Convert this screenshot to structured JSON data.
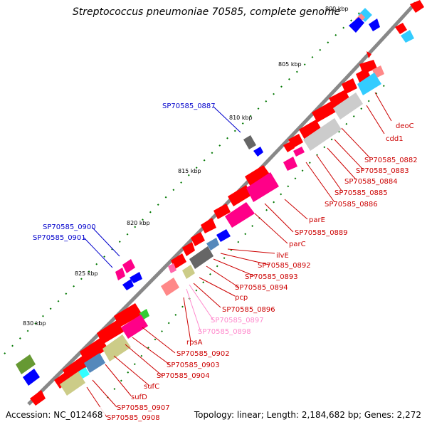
{
  "title": "Streptococcus pneumoniae 70585, complete genome",
  "footer": {
    "accession": "Accession: NC_012468",
    "summary": "Topology: linear; Length: 2,184,682 bp; Genes: 2,272"
  },
  "colors": {
    "cds_red": "#ff0000",
    "label_red": "#cc0000",
    "label_blue": "#0000cc",
    "label_pink": "#ff88cc",
    "backbone": "#888888",
    "tick_green": "#007700"
  },
  "scale_labels": [
    "800 kbp",
    "805 kbp",
    "810 kbp",
    "815 kbp",
    "820 kbp",
    "825 kbp",
    "830 kbp"
  ],
  "gene_labels": {
    "SP70585_0887": "SP70585_0887",
    "SP70585_0900": "SP70585_0900",
    "SP70585_0901": "SP70585_0901",
    "deoC": "deoC",
    "cdd1": "cdd1",
    "SP70585_0882": "SP70585_0882",
    "SP70585_0883": "SP70585_0883",
    "SP70585_0884": "SP70585_0884",
    "SP70585_0885": "SP70585_0885",
    "SP70585_0886": "SP70585_0886",
    "parE": "parE",
    "SP70585_0889": "SP70585_0889",
    "parC": "parC",
    "ilvE": "ilvE",
    "SP70585_0892": "SP70585_0892",
    "SP70585_0893": "SP70585_0893",
    "SP70585_0894": "SP70585_0894",
    "pcp": "pcp",
    "SP70585_0896": "SP70585_0896",
    "SP70585_0897": "SP70585_0897",
    "SP70585_0898": "SP70585_0898",
    "rpsA": "rpsA",
    "SP70585_0902": "SP70585_0902",
    "SP70585_0903": "SP70585_0903",
    "SP70585_0904": "SP70585_0904",
    "sufC": "sufC",
    "sufD": "sufD",
    "SP70585_0907": "SP70585_0907",
    "SP70585_0908": "SP70585_0908"
  }
}
